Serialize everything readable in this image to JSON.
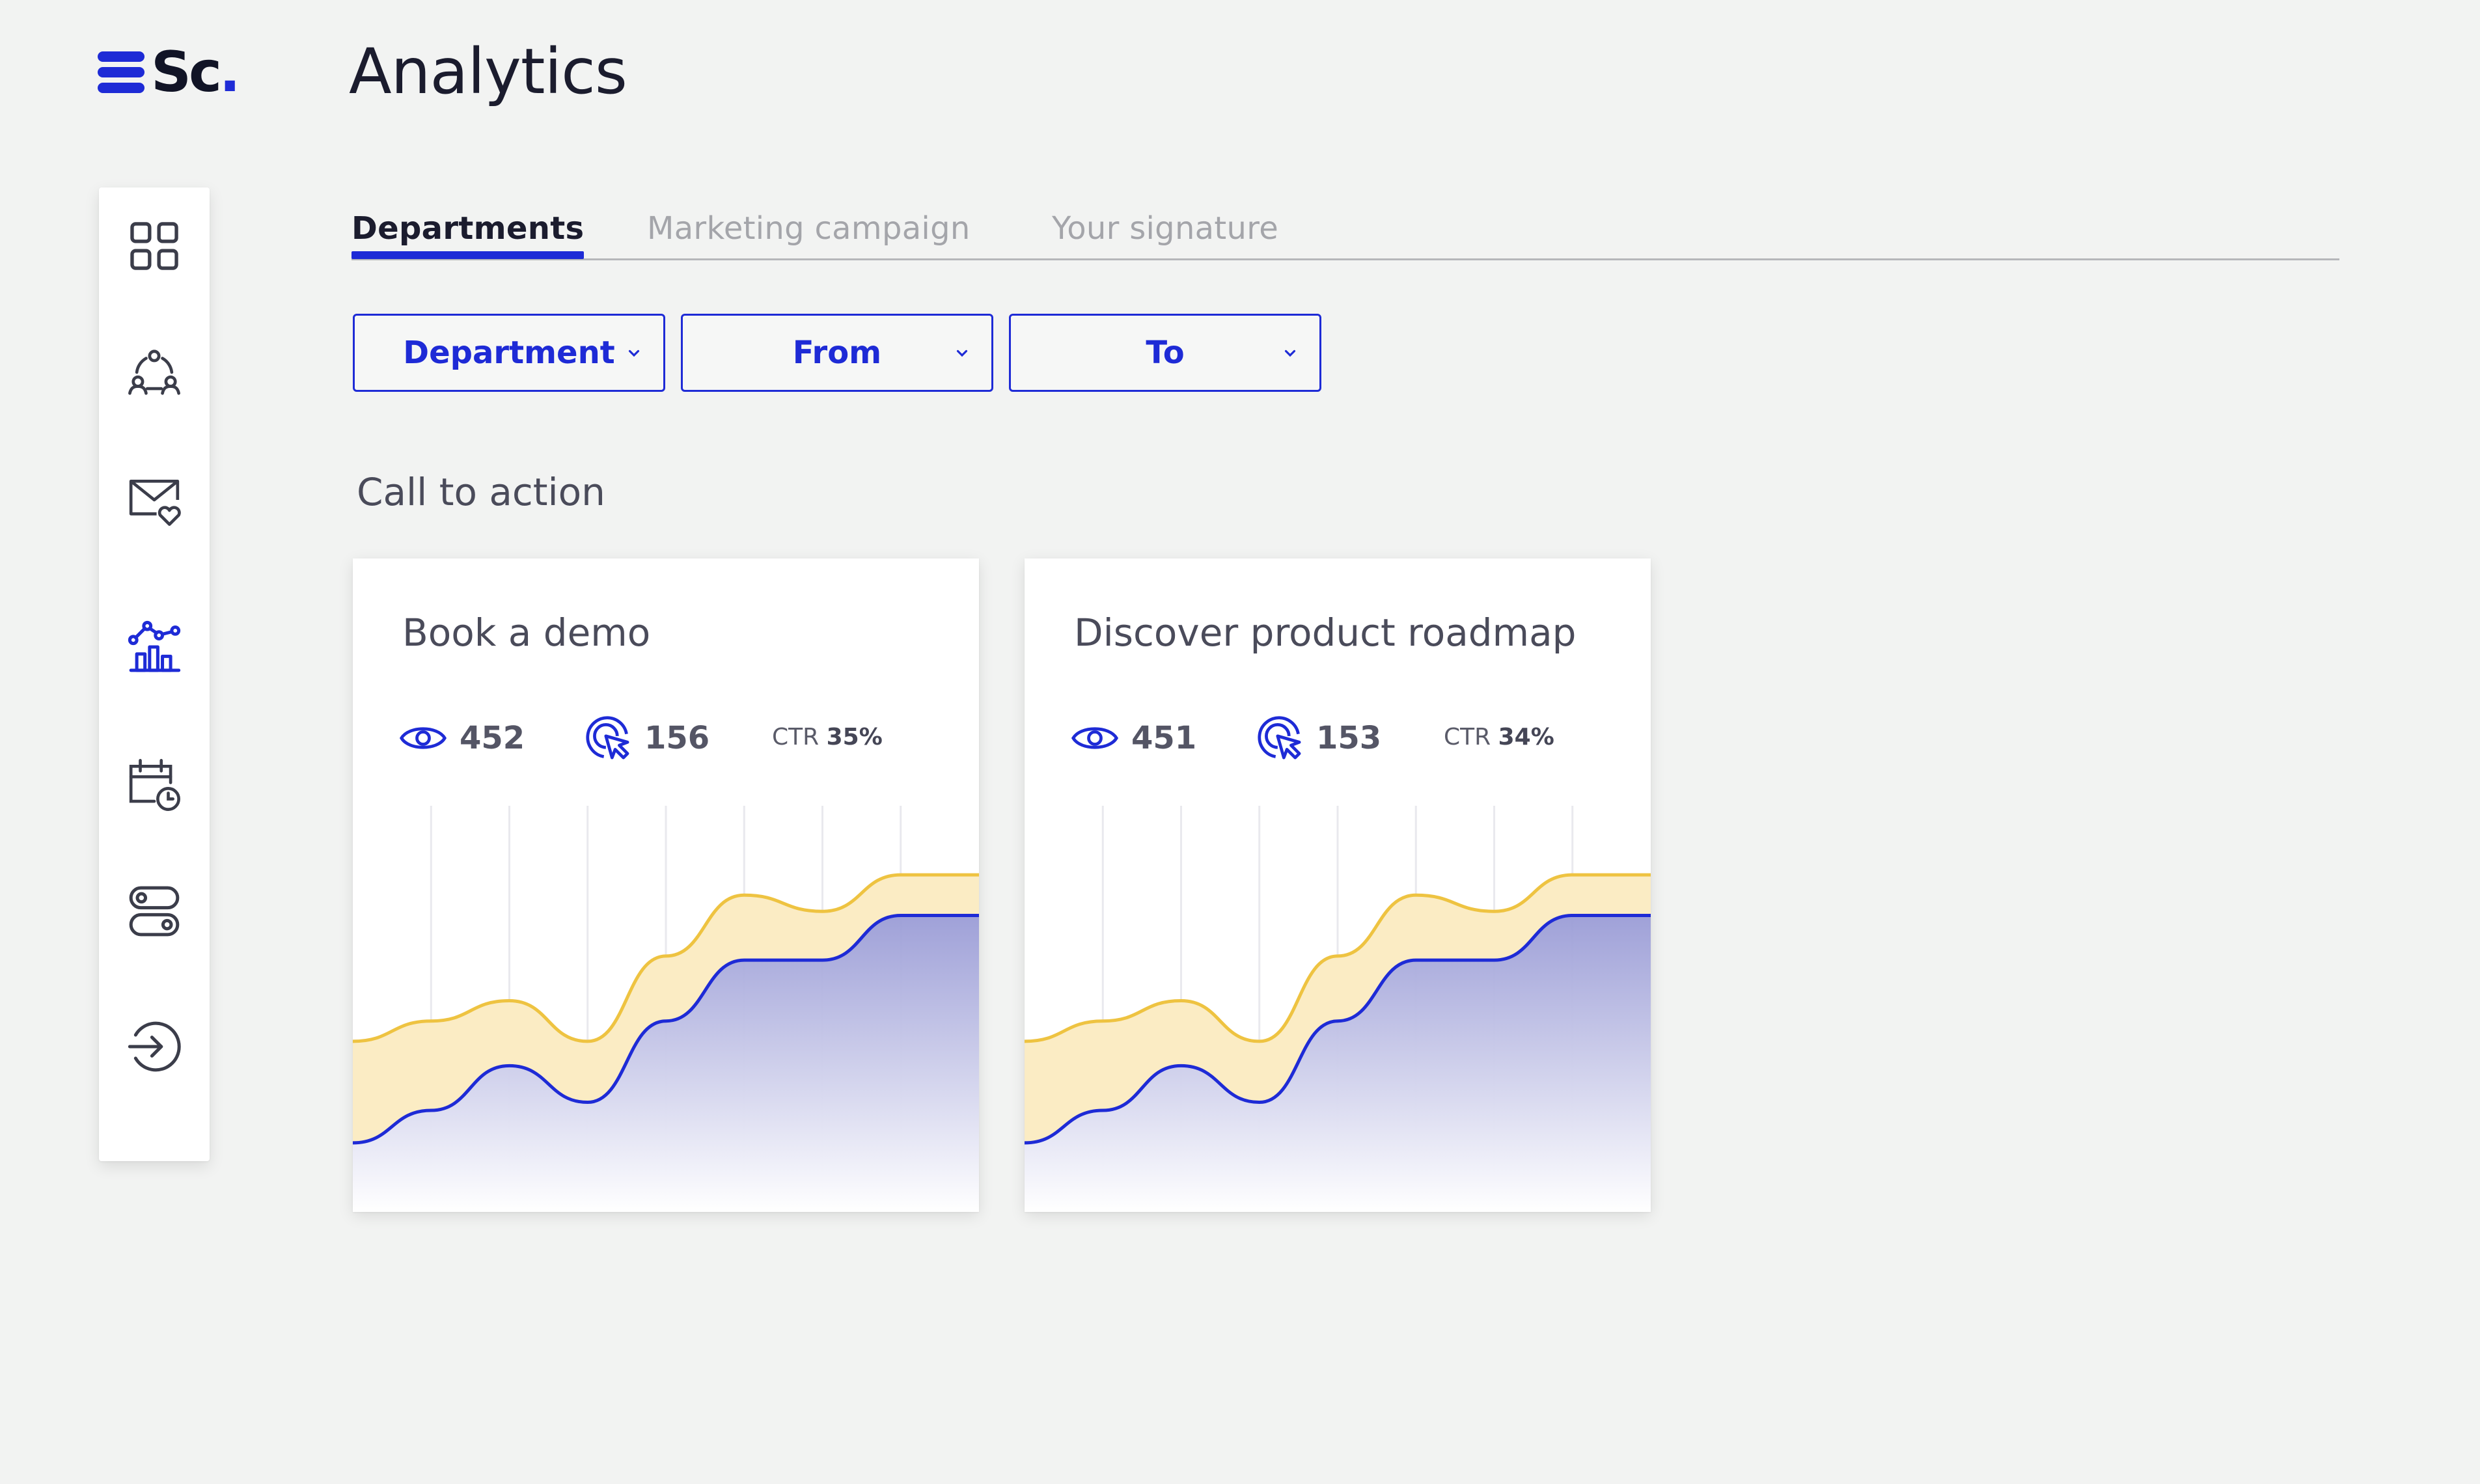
{
  "app": {
    "logo_text": "Sc",
    "logo_dot": ".",
    "page_title": "Analytics",
    "accent_color": "#1e2bd6",
    "highlight_color": "#eec341"
  },
  "sidebar": {
    "items": [
      {
        "name": "dashboard",
        "icon": "grid-icon",
        "active": false
      },
      {
        "name": "teams",
        "icon": "people-network-icon",
        "active": false
      },
      {
        "name": "mail",
        "icon": "mail-heart-icon",
        "active": false
      },
      {
        "name": "analytics",
        "icon": "analytics-chart-icon",
        "active": true
      },
      {
        "name": "schedule",
        "icon": "calendar-clock-icon",
        "active": false
      },
      {
        "name": "settings",
        "icon": "toggles-icon",
        "active": false
      },
      {
        "name": "logout",
        "icon": "logout-icon",
        "active": false
      }
    ]
  },
  "tabs": [
    {
      "label": "Departments",
      "active": true
    },
    {
      "label": "Marketing campaign",
      "active": false
    },
    {
      "label": "Your signature",
      "active": false
    }
  ],
  "filters": [
    {
      "label": "Department",
      "icon": "chevron-down-icon"
    },
    {
      "label": "From",
      "icon": "chevron-down-icon"
    },
    {
      "label": "To",
      "icon": "chevron-down-icon"
    }
  ],
  "section": {
    "heading": "Call to action"
  },
  "cards": [
    {
      "title": "Book a demo",
      "views": "452",
      "clicks": "156",
      "ctr_label": "CTR",
      "ctr_value": "35%"
    },
    {
      "title": "Discover product roadmap",
      "views": "451",
      "clicks": "153",
      "ctr_label": "CTR",
      "ctr_value": "34%"
    }
  ],
  "chart_data": [
    {
      "type": "area",
      "xlabel": "",
      "ylabel": "",
      "ylim": [
        0,
        100
      ],
      "grid": "vertical",
      "x": [
        0,
        1,
        2,
        3,
        4,
        5,
        6,
        7,
        8
      ],
      "series": [
        {
          "values": [
            42,
            47,
            52,
            42,
            63,
            78,
            74,
            83,
            83
          ],
          "color": "#eec341"
        },
        {
          "values": [
            17,
            25,
            36,
            27,
            47,
            62,
            62,
            73,
            73
          ],
          "color": "#1e2bd6"
        }
      ]
    },
    {
      "type": "area",
      "xlabel": "",
      "ylabel": "",
      "ylim": [
        0,
        100
      ],
      "grid": "vertical",
      "x": [
        0,
        1,
        2,
        3,
        4,
        5,
        6,
        7,
        8
      ],
      "series": [
        {
          "values": [
            42,
            47,
            52,
            42,
            63,
            78,
            74,
            83,
            83
          ],
          "color": "#eec341"
        },
        {
          "values": [
            17,
            25,
            36,
            27,
            47,
            62,
            62,
            73,
            73
          ],
          "color": "#1e2bd6"
        }
      ]
    }
  ]
}
